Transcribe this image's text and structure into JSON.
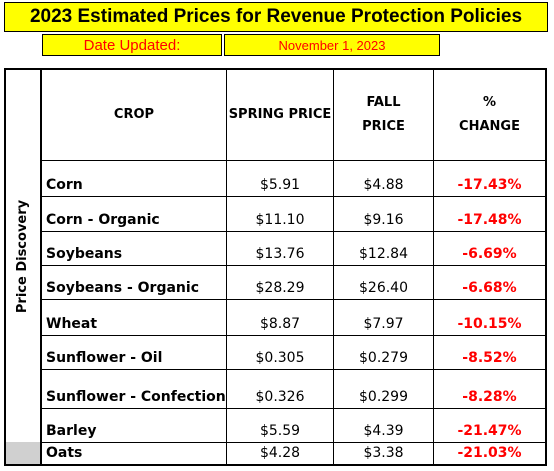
{
  "title": "2023 Estimated Prices for Revenue Protection Policies",
  "date_label": "Date Updated:",
  "date_value": "November 1, 2023",
  "side_label": "Price Discovery",
  "headers": {
    "crop": "CROP",
    "spring": "SPRING PRICE",
    "fall_line1": "FALL",
    "fall_line2": "PRICE",
    "change_line1": "%",
    "change_line2": "CHANGE"
  },
  "rows": [
    {
      "crop": "Corn",
      "spring": "$5.91",
      "fall": "$4.88",
      "change": "-17.43%"
    },
    {
      "crop": "Corn - Organic",
      "spring": "$11.10",
      "fall": "$9.16",
      "change": "-17.48%"
    },
    {
      "crop": "Soybeans",
      "spring": "$13.76",
      "fall": "$12.84",
      "change": "-6.69%"
    },
    {
      "crop": "Soybeans - Organic",
      "spring": "$28.29",
      "fall": "$26.40",
      "change": "-6.68%"
    },
    {
      "crop": "Wheat",
      "spring": "$8.87",
      "fall": "$7.97",
      "change": "-10.15%"
    },
    {
      "crop": "Sunflower - Oil",
      "spring": "$0.305",
      "fall": "$0.279",
      "change": "-8.52%"
    },
    {
      "crop": "Sunflower - Confection",
      "spring": "$0.326",
      "fall": "$0.299",
      "change": "-8.28%"
    },
    {
      "crop": "Barley",
      "spring": "$5.59",
      "fall": "$4.39",
      "change": "-21.47%"
    },
    {
      "crop": "Oats",
      "spring": "$4.28",
      "fall": "$3.38",
      "change": "-21.03%"
    }
  ],
  "colors": {
    "highlight": "#ffff00",
    "negative": "#ff0000",
    "gray": "#d0d0d0"
  }
}
